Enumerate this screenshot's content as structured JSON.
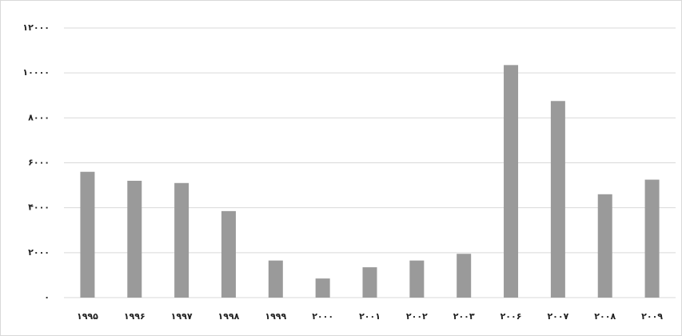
{
  "chart_data": {
    "type": "bar",
    "categories": [
      "۱۹۹۵",
      "۱۹۹۶",
      "۱۹۹۷",
      "۱۹۹۸",
      "۱۹۹۹",
      "۲۰۰۰",
      "۲۰۰۱",
      "۲۰۰۲",
      "۲۰۰۳",
      "۲۰۰۶",
      "۲۰۰۷",
      "۲۰۰۸",
      "۲۰۰۹"
    ],
    "values": [
      5600,
      5200,
      5100,
      3850,
      1650,
      850,
      1350,
      1650,
      1950,
      10350,
      8750,
      4600,
      5250
    ],
    "color": "#9a9a9a",
    "ylim": [
      0,
      12000
    ],
    "yticks": [
      {
        "value": 0,
        "label": "۰"
      },
      {
        "value": 2000,
        "label": "۲۰۰۰"
      },
      {
        "value": 4000,
        "label": "۴۰۰۰"
      },
      {
        "value": 6000,
        "label": "۶۰۰۰"
      },
      {
        "value": 8000,
        "label": "۸۰۰۰"
      },
      {
        "value": 10000,
        "label": "۱۰۰۰۰"
      },
      {
        "value": 12000,
        "label": "۱۲۰۰۰"
      }
    ],
    "grid": true
  }
}
